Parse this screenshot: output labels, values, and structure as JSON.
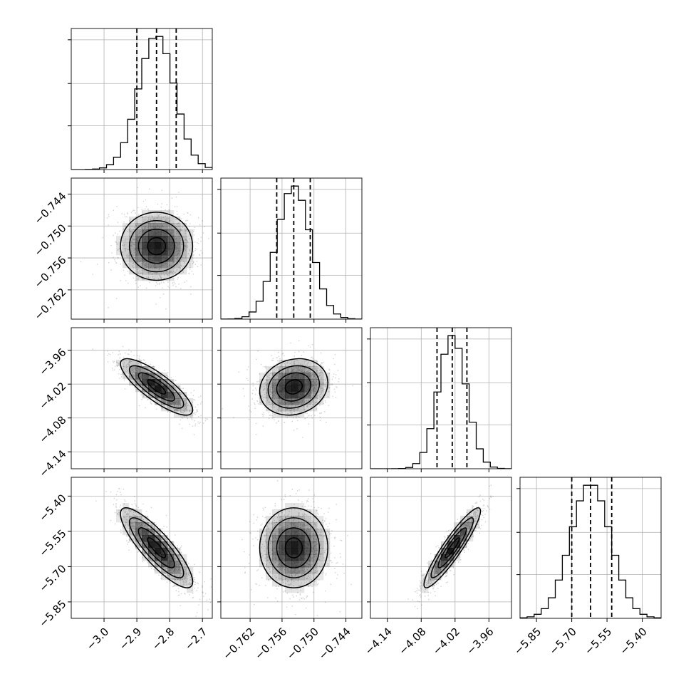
{
  "chart_data": {
    "type": "corner",
    "grid": true,
    "colors": {
      "line": "#000000",
      "grid": "#b0b0b0",
      "density": "#000000"
    },
    "variables": [
      {
        "mean": -2.84,
        "sigma": 0.055,
        "q16": -2.9,
        "q50": -2.84,
        "q84": -2.78,
        "range": [
          -3.1,
          -2.67
        ],
        "ticks": [
          -3.0,
          -2.9,
          -2.8,
          -2.7
        ],
        "tick_labels": [
          "−3.0",
          "−2.9",
          "−2.8",
          "−2.7"
        ]
      },
      {
        "mean": -0.7538,
        "sigma": 0.0032,
        "q16": -0.757,
        "q50": -0.7538,
        "q84": -0.7507,
        "range": [
          -0.7675,
          -0.741
        ],
        "ticks": [
          -0.762,
          -0.756,
          -0.75,
          -0.744
        ],
        "tick_labels": [
          "−0.762",
          "−0.756",
          "−0.750",
          "−0.744"
        ]
      },
      {
        "mean": -4.025,
        "sigma": 0.025,
        "q16": -4.052,
        "q50": -4.025,
        "q84": -3.999,
        "range": [
          -4.17,
          -3.92
        ],
        "ticks": [
          -4.14,
          -4.08,
          -4.02,
          -3.96
        ],
        "tick_labels": [
          "−4.14",
          "−4.08",
          "−4.02",
          "−3.96"
        ]
      },
      {
        "mean": -5.62,
        "sigma": 0.085,
        "q16": -5.7,
        "q50": -5.62,
        "q84": -5.53,
        "range": [
          -5.92,
          -5.32
        ],
        "ticks": [
          -5.85,
          -5.7,
          -5.55,
          -5.4
        ],
        "tick_labels": [
          "−5.85",
          "−5.70",
          "−5.55",
          "−5.40"
        ]
      }
    ],
    "correlations": [
      {
        "pair": [
          1,
          0
        ],
        "rho": 0.0
      },
      {
        "pair": [
          2,
          0
        ],
        "rho": -0.82
      },
      {
        "pair": [
          2,
          1
        ],
        "rho": 0.15
      },
      {
        "pair": [
          3,
          0
        ],
        "rho": -0.85
      },
      {
        "pair": [
          3,
          1
        ],
        "rho": 0.0
      },
      {
        "pair": [
          3,
          2
        ],
        "rho": 0.92
      }
    ],
    "histogram_bins": 20
  }
}
